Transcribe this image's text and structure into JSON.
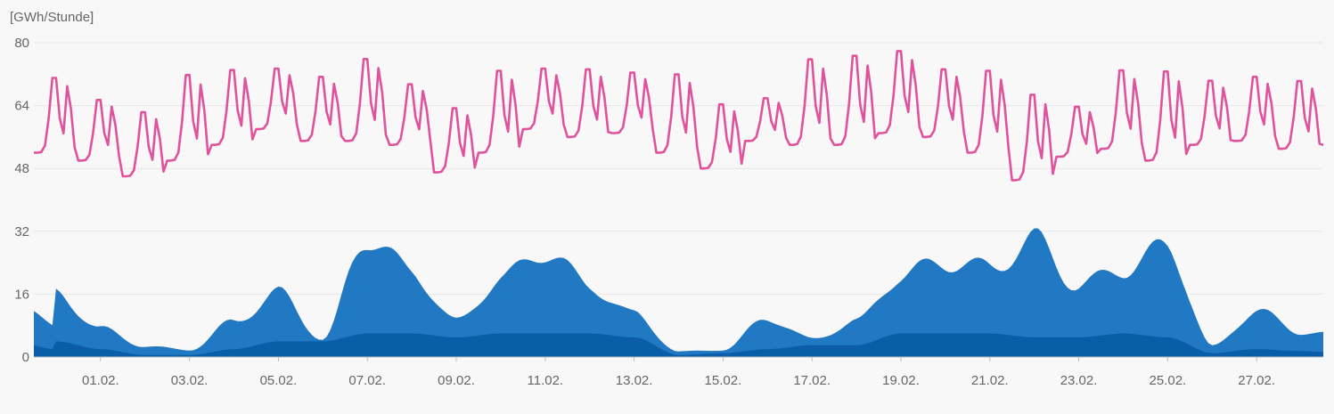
{
  "chart_data": {
    "type": "area",
    "unit_label": "[GWh/Stunde]",
    "ylim": [
      0,
      80
    ],
    "y_ticks": [
      0,
      16,
      32,
      48,
      64,
      80
    ],
    "x_domain": [
      "2023-01-31",
      "2023-03-01"
    ],
    "x_ticks": [
      "01.02.",
      "03.02.",
      "05.02.",
      "07.02.",
      "09.02.",
      "11.02.",
      "13.02.",
      "15.02.",
      "17.02.",
      "19.02.",
      "21.02.",
      "23.02.",
      "25.02.",
      "27.02."
    ],
    "grid": true,
    "colors": {
      "line": "#e0529c",
      "area_light": "#2178c3",
      "area_dark": "#0a5ea8",
      "grid": "#e6e6e6",
      "baseline": "#bdbdbd"
    },
    "series": [
      {
        "kind": "line",
        "daily_min": [
          52,
          50,
          46,
          50,
          54,
          58,
          55,
          55,
          54,
          47,
          52,
          58,
          56,
          57,
          52,
          48,
          55,
          54,
          54,
          57,
          56,
          52,
          45,
          51,
          53,
          50,
          54,
          55,
          53,
          54
        ],
        "daily_max": [
          73,
          67,
          64,
          74,
          75,
          75,
          73,
          78,
          71,
          65,
          75,
          75,
          75,
          74,
          74,
          66,
          67,
          78,
          79,
          80,
          75,
          75,
          69,
          65,
          75,
          75,
          72,
          73,
          72,
          70
        ]
      },
      {
        "kind": "area",
        "stack": "light",
        "daily_mean": [
          18,
          8,
          3,
          2,
          10,
          18,
          5,
          34,
          24,
          10,
          22,
          30,
          20,
          12,
          1.5,
          2,
          11,
          5,
          10,
          23,
          27,
          25,
          33,
          20,
          25,
          31,
          3,
          13,
          7,
          6
        ]
      },
      {
        "kind": "area",
        "stack": "dark",
        "daily_mean": [
          4,
          2,
          0.5,
          0.5,
          2,
          4,
          4,
          6,
          6,
          5,
          6,
          6,
          6,
          5,
          0.5,
          1,
          2,
          3,
          3,
          6,
          6,
          6,
          5,
          5,
          6,
          5,
          1,
          2,
          1.5,
          1
        ]
      }
    ]
  }
}
